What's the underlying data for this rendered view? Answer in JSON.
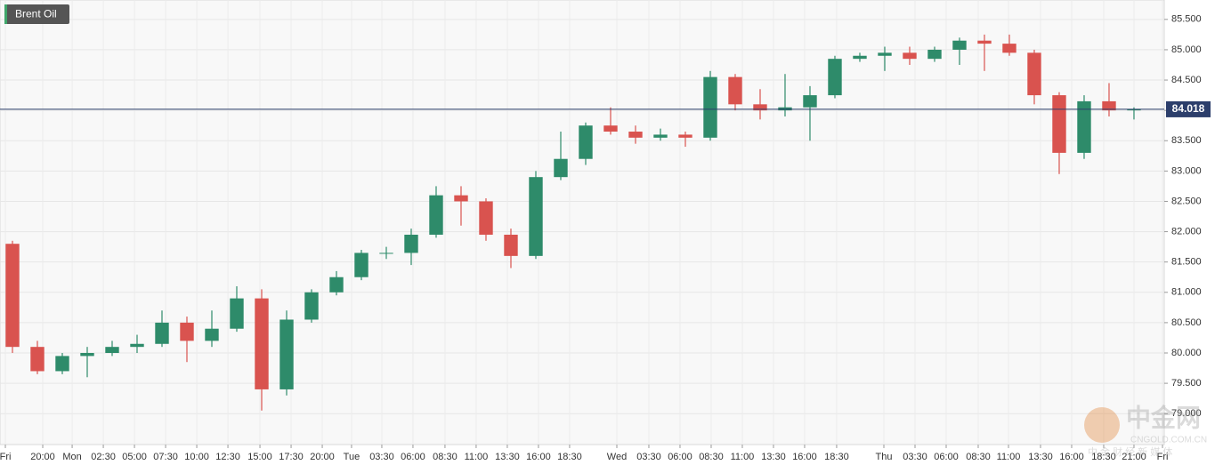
{
  "chart_data": {
    "type": "candlestick",
    "title": "Brent Oil",
    "x": [
      1,
      3,
      5,
      7,
      9,
      11,
      13,
      15,
      17,
      19,
      21,
      23,
      25,
      27,
      29,
      31,
      33,
      35,
      37,
      39,
      41,
      43,
      45,
      47,
      49,
      51,
      53,
      55,
      57,
      59,
      61,
      63,
      65,
      67,
      69,
      71,
      73,
      75,
      77,
      79,
      81,
      83,
      85,
      87,
      89,
      91
    ],
    "open": [
      81.8,
      80.1,
      79.7,
      79.95,
      80.0,
      80.1,
      80.15,
      80.5,
      80.2,
      80.4,
      80.9,
      79.4,
      80.55,
      81.0,
      81.25,
      81.65,
      81.65,
      81.95,
      82.6,
      82.5,
      81.95,
      81.6,
      82.9,
      83.2,
      83.75,
      83.65,
      83.55,
      83.6,
      83.55,
      84.55,
      84.1,
      84.0,
      84.05,
      84.25,
      84.85,
      84.9,
      84.95,
      84.85,
      85.0,
      85.15,
      85.1,
      84.95,
      84.25,
      83.3,
      84.15,
      84.0
    ],
    "high": [
      81.85,
      80.2,
      80.0,
      80.1,
      80.2,
      80.3,
      80.7,
      80.6,
      80.7,
      81.1,
      81.05,
      80.7,
      81.05,
      81.35,
      81.7,
      81.75,
      82.05,
      82.75,
      82.75,
      82.55,
      82.05,
      83.0,
      83.65,
      83.8,
      84.05,
      83.75,
      83.7,
      83.65,
      84.65,
      84.6,
      84.35,
      84.6,
      84.4,
      84.9,
      84.95,
      85.05,
      85.05,
      85.05,
      85.2,
      85.25,
      85.25,
      85.0,
      84.3,
      84.25,
      84.45,
      84.05
    ],
    "low": [
      80.0,
      79.65,
      79.65,
      79.6,
      79.95,
      80.0,
      80.1,
      79.85,
      80.1,
      80.35,
      79.05,
      79.3,
      80.5,
      80.95,
      81.2,
      81.55,
      81.45,
      81.9,
      82.1,
      81.85,
      81.4,
      81.55,
      82.85,
      83.1,
      83.6,
      83.45,
      83.5,
      83.4,
      83.5,
      84.0,
      83.85,
      83.9,
      83.5,
      84.2,
      84.8,
      84.65,
      84.75,
      84.8,
      84.75,
      84.65,
      84.9,
      84.1,
      82.95,
      83.2,
      83.9,
      83.85
    ],
    "close": [
      80.1,
      79.7,
      79.95,
      80.0,
      80.1,
      80.15,
      80.5,
      80.2,
      80.4,
      80.9,
      79.4,
      80.55,
      81.0,
      81.25,
      81.65,
      81.65,
      81.95,
      82.6,
      82.5,
      81.95,
      81.6,
      82.9,
      83.2,
      83.75,
      83.65,
      83.55,
      83.6,
      83.55,
      84.55,
      84.1,
      84.0,
      84.05,
      84.25,
      84.85,
      84.9,
      84.95,
      84.85,
      85.0,
      85.15,
      85.1,
      84.95,
      84.25,
      83.3,
      84.15,
      84.0,
      84.02
    ],
    "up_color": "#2e8b6a",
    "down_color": "#d9534f",
    "xlim": [
      0,
      93.43
    ],
    "xticks": [
      {
        "value": 0.43,
        "label": "Fri"
      },
      {
        "value": 3.43,
        "label": "20:00"
      },
      {
        "value": 5.79,
        "label": "Mon"
      },
      {
        "value": 8.29,
        "label": "02:30"
      },
      {
        "value": 10.79,
        "label": "05:00"
      },
      {
        "value": 13.29,
        "label": "07:30"
      },
      {
        "value": 15.79,
        "label": "10:00"
      },
      {
        "value": 18.29,
        "label": "12:30"
      },
      {
        "value": 20.86,
        "label": "15:00"
      },
      {
        "value": 23.36,
        "label": "17:30"
      },
      {
        "value": 25.86,
        "label": "20:00"
      },
      {
        "value": 28.21,
        "label": "Tue"
      },
      {
        "value": 30.64,
        "label": "03:30"
      },
      {
        "value": 33.14,
        "label": "06:00"
      },
      {
        "value": 35.71,
        "label": "08:30"
      },
      {
        "value": 38.21,
        "label": "11:00"
      },
      {
        "value": 40.71,
        "label": "13:30"
      },
      {
        "value": 43.21,
        "label": "16:00"
      },
      {
        "value": 45.71,
        "label": "18:30"
      },
      {
        "value": 49.5,
        "label": "Wed"
      },
      {
        "value": 52.07,
        "label": "03:30"
      },
      {
        "value": 54.57,
        "label": "06:00"
      },
      {
        "value": 57.07,
        "label": "08:30"
      },
      {
        "value": 59.57,
        "label": "11:00"
      },
      {
        "value": 62.07,
        "label": "13:30"
      },
      {
        "value": 64.57,
        "label": "16:00"
      },
      {
        "value": 67.14,
        "label": "18:30"
      },
      {
        "value": 70.93,
        "label": "Thu"
      },
      {
        "value": 73.43,
        "label": "03:30"
      },
      {
        "value": 75.93,
        "label": "06:00"
      },
      {
        "value": 78.5,
        "label": "08:30"
      },
      {
        "value": 80.93,
        "label": "11:00"
      },
      {
        "value": 83.5,
        "label": "13:30"
      },
      {
        "value": 86.0,
        "label": "16:00"
      },
      {
        "value": 88.57,
        "label": "18:30"
      },
      {
        "value": 91.0,
        "label": "21:00"
      },
      {
        "value": 93.29,
        "label": "Fri"
      }
    ],
    "ylim": [
      78.49,
      85.82
    ],
    "yticks": [
      {
        "value": 79.0,
        "label": "79.000"
      },
      {
        "value": 79.5,
        "label": "79.500"
      },
      {
        "value": 80.0,
        "label": "80.000"
      },
      {
        "value": 80.5,
        "label": "80.500"
      },
      {
        "value": 81.0,
        "label": "81.000"
      },
      {
        "value": 81.5,
        "label": "81.500"
      },
      {
        "value": 82.0,
        "label": "82.000"
      },
      {
        "value": 82.5,
        "label": "82.500"
      },
      {
        "value": 83.0,
        "label": "83.000"
      },
      {
        "value": 83.5,
        "label": "83.500"
      },
      {
        "value": 84.0,
        "label": "84.000"
      },
      {
        "value": 84.5,
        "label": "84.500"
      },
      {
        "value": 85.0,
        "label": "85.000"
      },
      {
        "value": 85.5,
        "label": "85.500"
      }
    ],
    "grid": true,
    "current": {
      "value": 84.018,
      "label": "84.018"
    }
  },
  "watermark": {
    "brand": "中金网",
    "site": "CNGOLD.COM.CN",
    "slogan": "中 金 财 经 新 媒 体"
  }
}
